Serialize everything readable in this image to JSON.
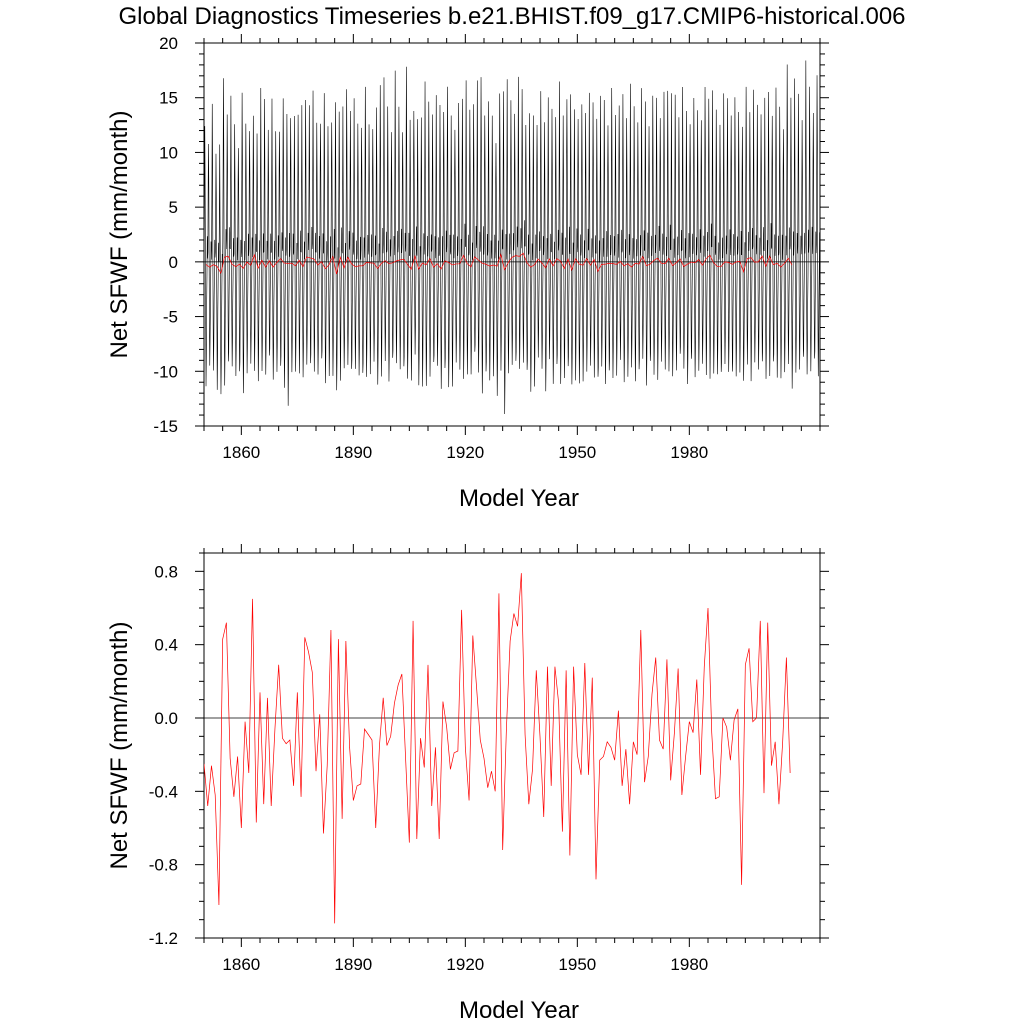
{
  "figure": {
    "title": "Global Diagnostics Timeseries b.e21.BHIST.f09_g17.CMIP6-historical.006"
  },
  "colors": {
    "monthly": "#000000",
    "annual": "#ff0000",
    "axis": "#000000"
  },
  "chart_data": [
    {
      "type": "line",
      "name": "monthly-panel",
      "title": "Global Diagnostics Timeseries b.e21.BHIST.f09_g17.CMIP6-historical.006",
      "xlabel": "Model Year",
      "ylabel": "Net SFWF (mm/month)",
      "xlim": [
        1850,
        2015
      ],
      "ylim": [
        -15,
        20
      ],
      "xticks": [
        1860,
        1890,
        1920,
        1950,
        1980
      ],
      "xtick_labels": [
        "1860",
        "1890",
        "1920",
        "1950",
        "1980"
      ],
      "yticks": [
        -15,
        -10,
        -5,
        0,
        5,
        10,
        15,
        20
      ],
      "ytick_labels": [
        "-15",
        "-10",
        "-5",
        "0",
        "5",
        "10",
        "15",
        "20"
      ],
      "reference_line": 0,
      "series": [
        {
          "name": "monthly",
          "color": "#000000",
          "description_of_cycle": "monthly values oscillating between roughly -13 and +17 with an annual cycle",
          "annual_peak_max": [
            13,
            13,
            14,
            11,
            10,
            16,
            14,
            14,
            13,
            12,
            15,
            13,
            14,
            12,
            13,
            14,
            15,
            13,
            14,
            12,
            13,
            14,
            14,
            15,
            13,
            14,
            13,
            14,
            15,
            14,
            13,
            14,
            15,
            13,
            14,
            15,
            14,
            13,
            15,
            15,
            14,
            13,
            14,
            15,
            13,
            14,
            14,
            17,
            15,
            14,
            13,
            16,
            14,
            13,
            17,
            14,
            15,
            13,
            14,
            15,
            14,
            15,
            14,
            15,
            15,
            15,
            14,
            14,
            14,
            15,
            15,
            14,
            15,
            15,
            17,
            15,
            14,
            14,
            13,
            14,
            17,
            15,
            14,
            14,
            15,
            15,
            14,
            13,
            14,
            14,
            15,
            14,
            13,
            14,
            14,
            15,
            14,
            16,
            15,
            14,
            15,
            14,
            14,
            14,
            14,
            15,
            14,
            15,
            14,
            15,
            14,
            16,
            15,
            14,
            15,
            14,
            14,
            14,
            15,
            14,
            14,
            15,
            15,
            15,
            16,
            14,
            15,
            14,
            15,
            14,
            14,
            14,
            14,
            15,
            15,
            15,
            14,
            14,
            14,
            14,
            15,
            15,
            14,
            14,
            15,
            15,
            14,
            14,
            14,
            14,
            14,
            15,
            15,
            15,
            15,
            14,
            17,
            16,
            15,
            15,
            14,
            17,
            16,
            15,
            16
          ],
          "annual_trough_min": [
            -11,
            -10,
            -10,
            -11,
            -12,
            -12,
            -11,
            -10,
            -10,
            -11,
            -12,
            -10,
            -10,
            -11,
            -10,
            -11,
            -10,
            -10,
            -11,
            -10,
            -11,
            -12,
            -13,
            -11,
            -10,
            -10,
            -11,
            -10,
            -11,
            -11,
            -10,
            -10,
            -11,
            -10,
            -12,
            -11,
            -11,
            -10,
            -10,
            -11,
            -10,
            -10,
            -11,
            -11,
            -10,
            -10,
            -11,
            -10,
            -10,
            -11,
            -10,
            -10,
            -10,
            -11,
            -11,
            -10,
            -10,
            -11,
            -11,
            -12,
            -11,
            -10,
            -10,
            -11,
            -11,
            -12,
            -11,
            -10,
            -10,
            -11,
            -11,
            -10,
            -10,
            -11,
            -12,
            -11,
            -11,
            -10,
            -13,
            -11,
            -13,
            -11,
            -10,
            -11,
            -11,
            -10,
            -11,
            -12,
            -11,
            -10,
            -10,
            -11,
            -10,
            -11,
            -11,
            -12,
            -10,
            -11,
            -11,
            -11,
            -12,
            -11,
            -10,
            -10,
            -11,
            -11,
            -10,
            -11,
            -11,
            -11,
            -10,
            -10,
            -11,
            -10,
            -10,
            -11,
            -11,
            -10,
            -11,
            -10,
            -11,
            -11,
            -10,
            -10,
            -10,
            -11,
            -10,
            -10,
            -10,
            -11,
            -10,
            -11,
            -10,
            -10,
            -11,
            -11,
            -11,
            -10,
            -11,
            -10,
            -10,
            -11,
            -11,
            -10,
            -11,
            -10,
            -11,
            -10,
            -10,
            -11,
            -11,
            -11,
            -10,
            -11,
            -10,
            -11,
            -10,
            -11,
            -11,
            -10,
            -10,
            -11,
            -10,
            -10,
            -11
          ]
        },
        {
          "name": "annual-mean",
          "color": "#ff0000",
          "same_as_panel": "annual-panel"
        }
      ]
    },
    {
      "type": "line",
      "name": "annual-panel",
      "xlabel": "Model Year",
      "ylabel": "Net SFWF (mm/month)",
      "xlim": [
        1850,
        2015
      ],
      "ylim": [
        -1.2,
        0.9
      ],
      "xticks": [
        1860,
        1890,
        1920,
        1950,
        1980
      ],
      "xtick_labels": [
        "1860",
        "1890",
        "1920",
        "1950",
        "1980"
      ],
      "yticks": [
        -1.2,
        -0.8,
        -0.4,
        0.0,
        0.4,
        0.8
      ],
      "ytick_labels": [
        "-1.2",
        "-0.8",
        "-0.4",
        "0.0",
        "0.4",
        "0.8"
      ],
      "reference_line": 0,
      "series": [
        {
          "name": "annual-mean",
          "color": "#ff0000",
          "x_start": 1850,
          "x_step": 1,
          "values": [
            -0.25,
            -0.48,
            -0.26,
            -0.42,
            -1.02,
            0.43,
            0.52,
            -0.22,
            -0.43,
            -0.21,
            -0.6,
            -0.02,
            -0.3,
            0.65,
            -0.57,
            0.14,
            -0.47,
            0.11,
            -0.48,
            -0.06,
            0.29,
            -0.11,
            -0.14,
            -0.12,
            -0.37,
            0.14,
            -0.43,
            0.44,
            0.36,
            0.25,
            -0.29,
            0.02,
            -0.63,
            -0.26,
            0.48,
            -1.12,
            0.43,
            -0.55,
            0.42,
            -0.16,
            -0.45,
            -0.37,
            -0.36,
            -0.06,
            -0.09,
            -0.12,
            -0.6,
            -0.15,
            0.11,
            -0.15,
            -0.1,
            0.08,
            0.18,
            0.24,
            -0.22,
            -0.68,
            0.53,
            -0.66,
            -0.11,
            -0.27,
            0.29,
            -0.48,
            -0.16,
            -0.66,
            0.09,
            -0.05,
            -0.28,
            -0.19,
            -0.18,
            0.59,
            -0.16,
            -0.45,
            0.45,
            0.17,
            -0.12,
            -0.22,
            -0.38,
            -0.29,
            -0.4,
            0.68,
            -0.72,
            -0.06,
            0.42,
            0.57,
            0.5,
            0.79,
            -0.09,
            -0.47,
            -0.28,
            0.26,
            -0.1,
            -0.54,
            0.28,
            -0.37,
            0.28,
            0.08,
            -0.62,
            0.26,
            -0.75,
            0.28,
            -0.2,
            -0.31,
            0.3,
            -0.31,
            0.22,
            -0.88,
            -0.23,
            -0.21,
            -0.13,
            -0.16,
            -0.23,
            0.04,
            -0.37,
            -0.17,
            -0.47,
            -0.13,
            -0.2,
            0.48,
            -0.35,
            -0.21,
            0.13,
            0.33,
            -0.12,
            -0.17,
            0.32,
            -0.34,
            -0.08,
            0.27,
            -0.42,
            -0.21,
            -0.02,
            -0.08,
            0.21,
            -0.31,
            0.28,
            0.6,
            -0.08,
            -0.44,
            -0.43,
            0.0,
            -0.05,
            -0.23,
            -0.01,
            0.05,
            -0.91,
            0.29,
            0.38,
            -0.02,
            -0.0,
            0.53,
            -0.41,
            0.52,
            -0.26,
            -0.13,
            -0.47,
            -0.13,
            0.33,
            -0.3
          ]
        }
      ]
    }
  ]
}
